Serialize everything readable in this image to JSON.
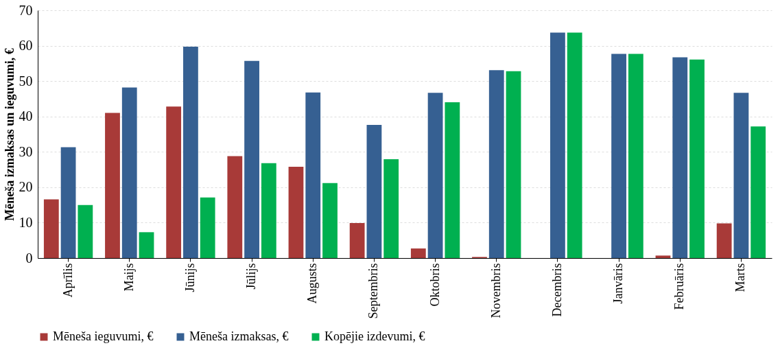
{
  "chart_data": {
    "type": "bar",
    "ylabel": "Mēneša izmaksas un  ieguvumi, €",
    "categories": [
      "Aprīlis",
      "Maijs",
      "Jūnijs",
      "Jūlijs",
      "Augusts",
      "Septembris",
      "Oktobris",
      "Novembris",
      "Decembris",
      "Janvāris",
      "Februāris",
      "Marts"
    ],
    "series": [
      {
        "name": "Mēneša ieguvumi, €",
        "color": "#a83a38",
        "values": [
          16.6,
          41,
          42.8,
          28.8,
          25.8,
          9.9,
          2.7,
          0.3,
          0,
          0,
          0.7,
          9.8
        ]
      },
      {
        "name": "Mēneša izmaksas, €",
        "color": "#366092",
        "values": [
          31.3,
          48.2,
          59.7,
          55.7,
          46.8,
          37.6,
          46.7,
          53.1,
          63.7,
          57.7,
          56.7,
          46.7
        ]
      },
      {
        "name": "Kopējie izdevumi, €",
        "color": "#00b050",
        "values": [
          15,
          7.3,
          17.1,
          26.8,
          21.2,
          27.9,
          44,
          52.8,
          63.7,
          57.7,
          56.1,
          37.2
        ]
      }
    ],
    "ylim": [
      0,
      70
    ],
    "yticks": [
      0,
      10,
      20,
      30,
      40,
      50,
      60,
      70
    ],
    "grid": "y",
    "legend": "bottom"
  }
}
